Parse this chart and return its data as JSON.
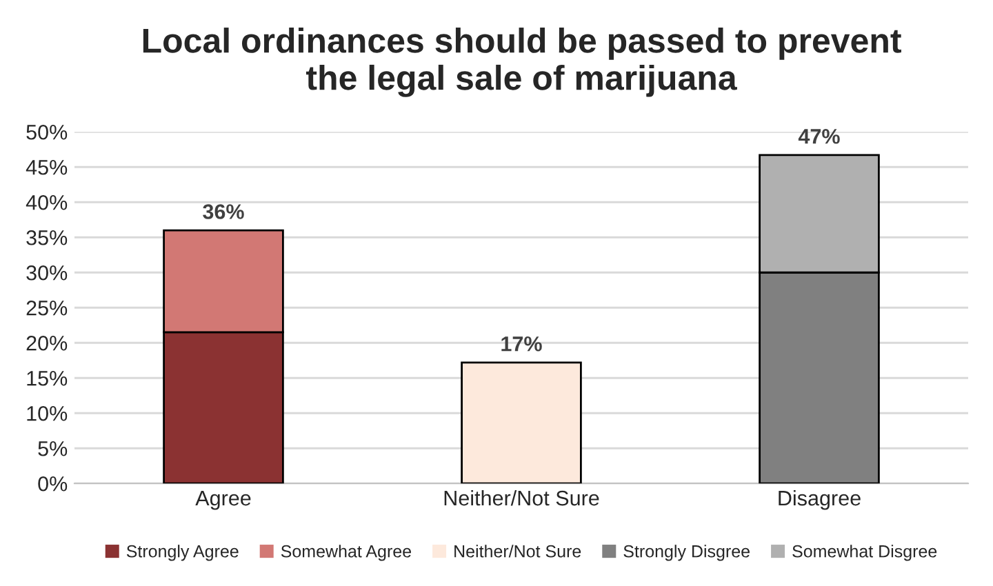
{
  "chart_data": {
    "type": "bar",
    "title": "Local ordinances should be passed to prevent\nthe legal sale of marijuana",
    "categories": [
      "Agree",
      "Neither/Not Sure",
      "Disagree"
    ],
    "stacked": true,
    "series": [
      {
        "name": "Strongly Agree",
        "color": "#8b3232",
        "values": [
          21.5,
          null,
          null
        ]
      },
      {
        "name": "Somewhat Agree",
        "color": "#d27874",
        "values": [
          14.5,
          null,
          null
        ]
      },
      {
        "name": "Neither/Not Sure",
        "color": "#fde9dc",
        "values": [
          null,
          17.2,
          null
        ]
      },
      {
        "name": "Strongly Disgree",
        "color": "#808080",
        "values": [
          null,
          null,
          30.0
        ]
      },
      {
        "name": "Somewhat Disgree",
        "color": "#b0b0b0",
        "values": [
          null,
          null,
          16.7
        ]
      }
    ],
    "totals": [
      "36%",
      "17%",
      "47%"
    ],
    "ylim": [
      0,
      50
    ],
    "yticks": [
      {
        "value": 0,
        "label": "0%"
      },
      {
        "value": 5,
        "label": "5%"
      },
      {
        "value": 10,
        "label": "10%"
      },
      {
        "value": 15,
        "label": "15%"
      },
      {
        "value": 20,
        "label": "20%"
      },
      {
        "value": 25,
        "label": "25%"
      },
      {
        "value": 30,
        "label": "30%"
      },
      {
        "value": 35,
        "label": "35%"
      },
      {
        "value": 40,
        "label": "40%"
      },
      {
        "value": 45,
        "label": "45%"
      },
      {
        "value": 50,
        "label": "50%"
      }
    ],
    "grid": "y",
    "legend": "bottom"
  }
}
